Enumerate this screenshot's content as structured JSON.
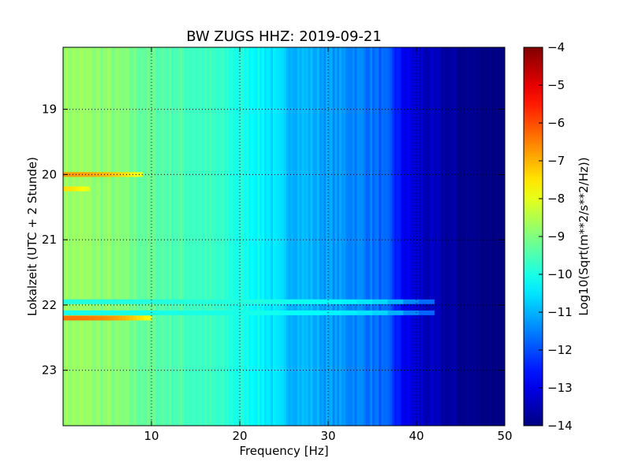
{
  "chart_data": {
    "type": "heatmap",
    "title": "BW ZUGS HHZ: 2019-09-21",
    "xlabel": "Frequency [Hz]",
    "ylabel": "Lokalzeit (UTC + 2 Stunde)",
    "xlim": [
      0,
      50
    ],
    "ylim": [
      18.05,
      23.85
    ],
    "y_inverted": true,
    "x_ticks": [
      10,
      20,
      30,
      40,
      50
    ],
    "y_ticks": [
      19,
      20,
      21,
      22,
      23
    ],
    "grid": true,
    "colormap": "jet",
    "colorbar": {
      "label": "Log10(Sqrt(m**2/s**2/Hz))",
      "range": [
        -14,
        -4
      ],
      "ticks": [
        -4,
        -5,
        -6,
        -7,
        -8,
        -9,
        -10,
        -11,
        -12,
        -13,
        -14
      ]
    },
    "spectral_profile": {
      "frequency_hz": [
        0,
        5,
        10,
        15,
        18,
        20,
        22,
        25,
        28,
        30,
        33,
        35,
        37,
        38,
        39,
        40,
        41,
        45,
        50
      ],
      "log10_amplitude": [
        -8.7,
        -8.9,
        -9.3,
        -9.6,
        -9.8,
        -10.0,
        -10.2,
        -10.8,
        -11.0,
        -11.2,
        -11.4,
        -11.6,
        -12.0,
        -12.6,
        -13.0,
        -13.2,
        -13.4,
        -13.8,
        -14.0
      ]
    },
    "events": [
      {
        "time": 20.0,
        "f_max_hz": 9,
        "peak_log10": -7.0
      },
      {
        "time": 20.22,
        "f_max_hz": 3,
        "peak_log10": -7.7
      },
      {
        "time": 21.95,
        "f_max_hz": 42,
        "peak_log10": -10.2
      },
      {
        "time": 22.12,
        "f_max_hz": 42,
        "peak_log10": -10.3
      },
      {
        "time": 22.2,
        "f_max_hz": 10,
        "peak_log10": -6.6
      }
    ],
    "colors": {
      "grid": "#000000",
      "axis": "#000000",
      "background": "#ffffff"
    }
  }
}
